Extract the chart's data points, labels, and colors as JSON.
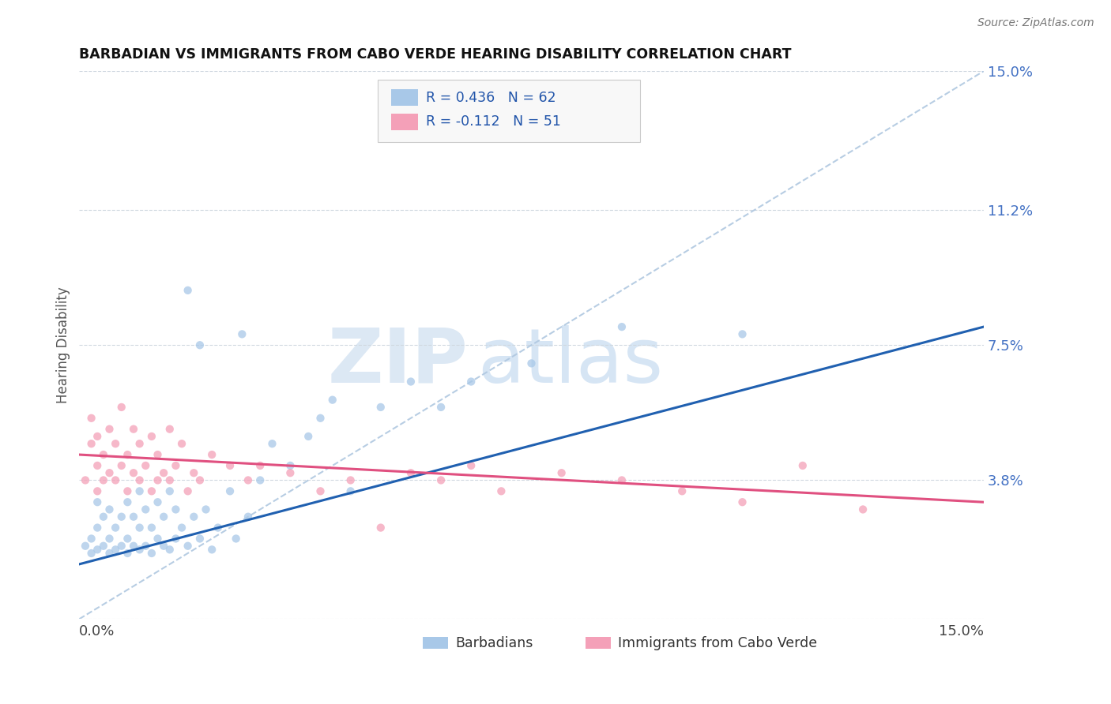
{
  "title": "BARBADIAN VS IMMIGRANTS FROM CABO VERDE HEARING DISABILITY CORRELATION CHART",
  "source": "Source: ZipAtlas.com",
  "ylabel": "Hearing Disability",
  "xlim": [
    0.0,
    0.15
  ],
  "ylim": [
    0.0,
    0.15
  ],
  "yticks": [
    0.0,
    0.038,
    0.075,
    0.112,
    0.15
  ],
  "ytick_labels": [
    "",
    "3.8%",
    "7.5%",
    "11.2%",
    "15.0%"
  ],
  "legend_label1": "Barbadians",
  "legend_label2": "Immigrants from Cabo Verde",
  "color_blue": "#a8c8e8",
  "color_pink": "#f4a0b8",
  "trendline_blue": "#2060b0",
  "trendline_pink": "#e05080",
  "trendline_dashed_color": "#b0c8e0",
  "background": "#ffffff",
  "r_blue": 0.436,
  "n_blue": 62,
  "r_pink": -0.112,
  "n_pink": 51,
  "blue_scatter": [
    [
      0.001,
      0.02
    ],
    [
      0.002,
      0.018
    ],
    [
      0.002,
      0.022
    ],
    [
      0.003,
      0.019
    ],
    [
      0.003,
      0.025
    ],
    [
      0.003,
      0.032
    ],
    [
      0.004,
      0.02
    ],
    [
      0.004,
      0.028
    ],
    [
      0.005,
      0.018
    ],
    [
      0.005,
      0.022
    ],
    [
      0.005,
      0.03
    ],
    [
      0.006,
      0.019
    ],
    [
      0.006,
      0.025
    ],
    [
      0.007,
      0.02
    ],
    [
      0.007,
      0.028
    ],
    [
      0.008,
      0.018
    ],
    [
      0.008,
      0.022
    ],
    [
      0.008,
      0.032
    ],
    [
      0.009,
      0.02
    ],
    [
      0.009,
      0.028
    ],
    [
      0.01,
      0.019
    ],
    [
      0.01,
      0.025
    ],
    [
      0.01,
      0.035
    ],
    [
      0.011,
      0.02
    ],
    [
      0.011,
      0.03
    ],
    [
      0.012,
      0.018
    ],
    [
      0.012,
      0.025
    ],
    [
      0.013,
      0.022
    ],
    [
      0.013,
      0.032
    ],
    [
      0.014,
      0.02
    ],
    [
      0.014,
      0.028
    ],
    [
      0.015,
      0.019
    ],
    [
      0.015,
      0.035
    ],
    [
      0.016,
      0.022
    ],
    [
      0.016,
      0.03
    ],
    [
      0.017,
      0.025
    ],
    [
      0.018,
      0.02
    ],
    [
      0.018,
      0.09
    ],
    [
      0.019,
      0.028
    ],
    [
      0.02,
      0.022
    ],
    [
      0.02,
      0.075
    ],
    [
      0.021,
      0.03
    ],
    [
      0.022,
      0.019
    ],
    [
      0.023,
      0.025
    ],
    [
      0.025,
      0.035
    ],
    [
      0.026,
      0.022
    ],
    [
      0.027,
      0.078
    ],
    [
      0.028,
      0.028
    ],
    [
      0.03,
      0.038
    ],
    [
      0.032,
      0.048
    ],
    [
      0.035,
      0.042
    ],
    [
      0.038,
      0.05
    ],
    [
      0.04,
      0.055
    ],
    [
      0.042,
      0.06
    ],
    [
      0.045,
      0.035
    ],
    [
      0.05,
      0.058
    ],
    [
      0.055,
      0.065
    ],
    [
      0.06,
      0.058
    ],
    [
      0.065,
      0.065
    ],
    [
      0.075,
      0.07
    ],
    [
      0.09,
      0.08
    ],
    [
      0.11,
      0.078
    ]
  ],
  "pink_scatter": [
    [
      0.001,
      0.038
    ],
    [
      0.002,
      0.048
    ],
    [
      0.002,
      0.055
    ],
    [
      0.003,
      0.035
    ],
    [
      0.003,
      0.042
    ],
    [
      0.003,
      0.05
    ],
    [
      0.004,
      0.038
    ],
    [
      0.004,
      0.045
    ],
    [
      0.005,
      0.04
    ],
    [
      0.005,
      0.052
    ],
    [
      0.006,
      0.038
    ],
    [
      0.006,
      0.048
    ],
    [
      0.007,
      0.042
    ],
    [
      0.007,
      0.058
    ],
    [
      0.008,
      0.035
    ],
    [
      0.008,
      0.045
    ],
    [
      0.009,
      0.04
    ],
    [
      0.009,
      0.052
    ],
    [
      0.01,
      0.038
    ],
    [
      0.01,
      0.048
    ],
    [
      0.011,
      0.042
    ],
    [
      0.012,
      0.035
    ],
    [
      0.012,
      0.05
    ],
    [
      0.013,
      0.038
    ],
    [
      0.013,
      0.045
    ],
    [
      0.014,
      0.04
    ],
    [
      0.015,
      0.052
    ],
    [
      0.015,
      0.038
    ],
    [
      0.016,
      0.042
    ],
    [
      0.017,
      0.048
    ],
    [
      0.018,
      0.035
    ],
    [
      0.019,
      0.04
    ],
    [
      0.02,
      0.038
    ],
    [
      0.022,
      0.045
    ],
    [
      0.025,
      0.042
    ],
    [
      0.028,
      0.038
    ],
    [
      0.03,
      0.042
    ],
    [
      0.035,
      0.04
    ],
    [
      0.04,
      0.035
    ],
    [
      0.045,
      0.038
    ],
    [
      0.05,
      0.025
    ],
    [
      0.055,
      0.04
    ],
    [
      0.06,
      0.038
    ],
    [
      0.065,
      0.042
    ],
    [
      0.07,
      0.035
    ],
    [
      0.08,
      0.04
    ],
    [
      0.09,
      0.038
    ],
    [
      0.1,
      0.035
    ],
    [
      0.11,
      0.032
    ],
    [
      0.12,
      0.042
    ],
    [
      0.13,
      0.03
    ]
  ]
}
